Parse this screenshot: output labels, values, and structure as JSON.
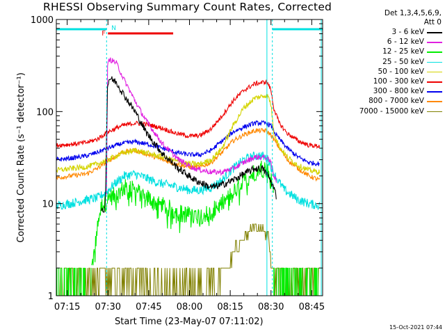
{
  "chart_data": {
    "type": "line",
    "title": "RHESSI Observing Summary Count Rates, Corrected",
    "xlabel": "Start Time (23-May-07 07:11:02)",
    "ylabel": "Corrected Count Rate (s⁻¹ detector⁻¹)",
    "yscale": "log",
    "ylim": [
      1,
      1000
    ],
    "y_ticks": [
      "1",
      "10",
      "100",
      "1000"
    ],
    "xlim": [
      "07:11",
      "08:49"
    ],
    "x_ticks": [
      "07:15",
      "07:30",
      "07:45",
      "08:00",
      "08:15",
      "08:30",
      "08:45"
    ],
    "grid": false,
    "legend_position": "right",
    "legend_header": [
      "Det 1,3,4,5,6,9,",
      "Att 0"
    ],
    "timestamp": "15-Oct-2021 07:44",
    "flags": {
      "night_bars": [
        [
          "07:11",
          "07:29.5"
        ],
        [
          "08:30.5",
          "08:49"
        ]
      ],
      "night_label": "N",
      "flare_bar": [
        "07:30",
        "07:54"
      ],
      "flare_label": "F",
      "boundaries": [
        "07:29.5",
        "08:28.5",
        "08:30.5",
        "08:48.5"
      ]
    },
    "series": [
      {
        "name": "3 - 6 keV",
        "color": "#000000",
        "noise": 0.04,
        "points": [
          [
            "07:27.5",
            8
          ],
          [
            "07:29",
            9
          ],
          [
            "07:29.8",
            180
          ],
          [
            "07:30.5",
            230
          ],
          [
            "07:33",
            210
          ],
          [
            "07:36",
            150
          ],
          [
            "07:40",
            100
          ],
          [
            "07:44",
            60
          ],
          [
            "07:50",
            35
          ],
          [
            "07:56",
            24
          ],
          [
            "08:02",
            18
          ],
          [
            "08:08",
            15
          ],
          [
            "08:12",
            16
          ],
          [
            "08:16",
            18
          ],
          [
            "08:20",
            21
          ],
          [
            "08:24",
            24
          ],
          [
            "08:27",
            24
          ],
          [
            "08:29",
            20
          ],
          [
            "08:31",
            15
          ],
          [
            "08:32",
            12
          ]
        ]
      },
      {
        "name": "6 - 12 keV",
        "color": "#e020e0",
        "noise": 0.03,
        "points": [
          [
            "07:29.5",
            12
          ],
          [
            "07:29.8",
            300
          ],
          [
            "07:30.5",
            370
          ],
          [
            "07:33",
            340
          ],
          [
            "07:36",
            220
          ],
          [
            "07:40",
            130
          ],
          [
            "07:44",
            80
          ],
          [
            "07:50",
            45
          ],
          [
            "07:56",
            30
          ],
          [
            "08:02",
            24
          ],
          [
            "08:08",
            22
          ],
          [
            "08:12",
            22
          ],
          [
            "08:16",
            24
          ],
          [
            "08:20",
            28
          ],
          [
            "08:24",
            32
          ],
          [
            "08:28",
            32
          ],
          [
            "08:30",
            28
          ],
          [
            "08:31",
            20
          ],
          [
            "08:32",
            18
          ]
        ]
      },
      {
        "name": "12 - 25 keV",
        "color": "#00ee00",
        "noise": 0.1,
        "points": [
          [
            "07:24",
            2
          ],
          [
            "07:25",
            3
          ],
          [
            "07:26",
            5
          ],
          [
            "07:27",
            8
          ],
          [
            "07:28",
            10
          ],
          [
            "07:29",
            10
          ],
          [
            "07:30",
            12
          ],
          [
            "07:33",
            12
          ],
          [
            "07:36",
            15
          ],
          [
            "07:40",
            14
          ],
          [
            "07:44",
            12
          ],
          [
            "07:48",
            10
          ],
          [
            "07:52",
            9
          ],
          [
            "07:56",
            8
          ],
          [
            "08:00",
            7.5
          ],
          [
            "08:04",
            7.5
          ],
          [
            "08:08",
            8
          ],
          [
            "08:12",
            10
          ],
          [
            "08:16",
            13
          ],
          [
            "08:20",
            17
          ],
          [
            "08:24",
            22
          ],
          [
            "08:27",
            25
          ],
          [
            "08:29",
            22
          ],
          [
            "08:30",
            18
          ],
          [
            "08:31",
            15
          ]
        ]
      },
      {
        "name": "25 - 50 keV",
        "color": "#00e0e0",
        "noise": 0.05,
        "points": [
          [
            "07:11",
            9.5
          ],
          [
            "07:16",
            10
          ],
          [
            "07:22",
            11
          ],
          [
            "07:26",
            11.5
          ],
          [
            "07:29",
            13
          ],
          [
            "07:32",
            16
          ],
          [
            "07:36",
            20
          ],
          [
            "07:40",
            21
          ],
          [
            "07:44",
            19
          ],
          [
            "07:48",
            17
          ],
          [
            "07:52",
            16
          ],
          [
            "07:56",
            15
          ],
          [
            "08:00",
            14
          ],
          [
            "08:04",
            14
          ],
          [
            "08:08",
            15
          ],
          [
            "08:12",
            18
          ],
          [
            "08:16",
            24
          ],
          [
            "08:20",
            30
          ],
          [
            "08:24",
            33
          ],
          [
            "08:27",
            33
          ],
          [
            "08:29",
            30
          ],
          [
            "08:30",
            25
          ],
          [
            "08:32",
            19
          ],
          [
            "08:35",
            14
          ],
          [
            "08:40",
            11
          ],
          [
            "08:44",
            10
          ],
          [
            "08:48",
            9.5
          ]
        ]
      },
      {
        "name": "50 - 100 keV",
        "color": "#d4d400",
        "noise": 0.03,
        "points": [
          [
            "07:11",
            23
          ],
          [
            "07:16",
            24
          ],
          [
            "07:22",
            25
          ],
          [
            "07:26",
            27
          ],
          [
            "07:30",
            30
          ],
          [
            "07:35",
            35
          ],
          [
            "07:40",
            38
          ],
          [
            "07:45",
            35
          ],
          [
            "07:50",
            32
          ],
          [
            "07:55",
            29
          ],
          [
            "08:00",
            27
          ],
          [
            "08:04",
            27
          ],
          [
            "08:08",
            30
          ],
          [
            "08:12",
            40
          ],
          [
            "08:16",
            70
          ],
          [
            "08:20",
            110
          ],
          [
            "08:24",
            140
          ],
          [
            "08:28",
            150
          ],
          [
            "08:29",
            145
          ],
          [
            "08:30",
            120
          ],
          [
            "08:31",
            60
          ],
          [
            "08:33",
            42
          ],
          [
            "08:36",
            32
          ],
          [
            "08:40",
            26
          ],
          [
            "08:44",
            23
          ],
          [
            "08:48",
            22
          ]
        ]
      },
      {
        "name": "100 - 300 keV",
        "color": "#ee0000",
        "noise": 0.025,
        "points": [
          [
            "07:11",
            43
          ],
          [
            "07:16",
            44
          ],
          [
            "07:22",
            46
          ],
          [
            "07:26",
            50
          ],
          [
            "07:30",
            60
          ],
          [
            "07:35",
            70
          ],
          [
            "07:40",
            75
          ],
          [
            "07:45",
            72
          ],
          [
            "07:50",
            66
          ],
          [
            "07:55",
            58
          ],
          [
            "08:00",
            54
          ],
          [
            "08:04",
            55
          ],
          [
            "08:08",
            65
          ],
          [
            "08:12",
            90
          ],
          [
            "08:16",
            130
          ],
          [
            "08:20",
            170
          ],
          [
            "08:24",
            200
          ],
          [
            "08:28",
            210
          ],
          [
            "08:29",
            200
          ],
          [
            "08:30",
            170
          ],
          [
            "08:31",
            110
          ],
          [
            "08:33",
            75
          ],
          [
            "08:36",
            58
          ],
          [
            "08:40",
            48
          ],
          [
            "08:44",
            43
          ],
          [
            "08:48",
            42
          ]
        ]
      },
      {
        "name": "300 - 800 keV",
        "color": "#0000ee",
        "noise": 0.025,
        "points": [
          [
            "07:11",
            30
          ],
          [
            "07:16",
            31
          ],
          [
            "07:22",
            33
          ],
          [
            "07:26",
            36
          ],
          [
            "07:30",
            40
          ],
          [
            "07:35",
            45
          ],
          [
            "07:40",
            47
          ],
          [
            "07:45",
            44
          ],
          [
            "07:50",
            40
          ],
          [
            "07:55",
            36
          ],
          [
            "08:00",
            34
          ],
          [
            "08:04",
            34
          ],
          [
            "08:08",
            38
          ],
          [
            "08:12",
            48
          ],
          [
            "08:16",
            60
          ],
          [
            "08:20",
            68
          ],
          [
            "08:24",
            75
          ],
          [
            "08:28",
            75
          ],
          [
            "08:30",
            70
          ],
          [
            "08:32",
            55
          ],
          [
            "08:36",
            40
          ],
          [
            "08:40",
            32
          ],
          [
            "08:44",
            28
          ],
          [
            "08:48",
            27
          ]
        ]
      },
      {
        "name": "800 - 7000 keV",
        "color": "#ff8800",
        "noise": 0.025,
        "points": [
          [
            "07:11",
            19
          ],
          [
            "07:16",
            20
          ],
          [
            "07:22",
            21
          ],
          [
            "07:26",
            24
          ],
          [
            "07:30",
            29
          ],
          [
            "07:35",
            36
          ],
          [
            "07:40",
            38
          ],
          [
            "07:45",
            34
          ],
          [
            "07:50",
            30
          ],
          [
            "07:55",
            27
          ],
          [
            "08:00",
            25
          ],
          [
            "08:04",
            25
          ],
          [
            "08:08",
            28
          ],
          [
            "08:12",
            36
          ],
          [
            "08:16",
            48
          ],
          [
            "08:20",
            56
          ],
          [
            "08:24",
            62
          ],
          [
            "08:28",
            62
          ],
          [
            "08:30",
            56
          ],
          [
            "08:32",
            45
          ],
          [
            "08:36",
            30
          ],
          [
            "08:40",
            24
          ],
          [
            "08:44",
            20
          ],
          [
            "08:48",
            18
          ]
        ]
      },
      {
        "name": "7000 - 15000 keV",
        "color": "#808000",
        "noise": 0,
        "points": [
          [
            "07:11",
            1.5
          ],
          [
            "07:40",
            1.5
          ],
          [
            "07:55",
            1.2
          ],
          [
            "08:10",
            1.5
          ],
          [
            "08:14",
            2
          ],
          [
            "08:16",
            3
          ],
          [
            "08:18",
            3.5
          ],
          [
            "08:20",
            4
          ],
          [
            "08:22",
            5
          ],
          [
            "08:24",
            5.5
          ],
          [
            "08:27",
            5.5
          ],
          [
            "08:29",
            4
          ],
          [
            "08:31",
            2
          ],
          [
            "08:35",
            1.5
          ],
          [
            "08:48",
            1.5
          ]
        ]
      }
    ]
  }
}
